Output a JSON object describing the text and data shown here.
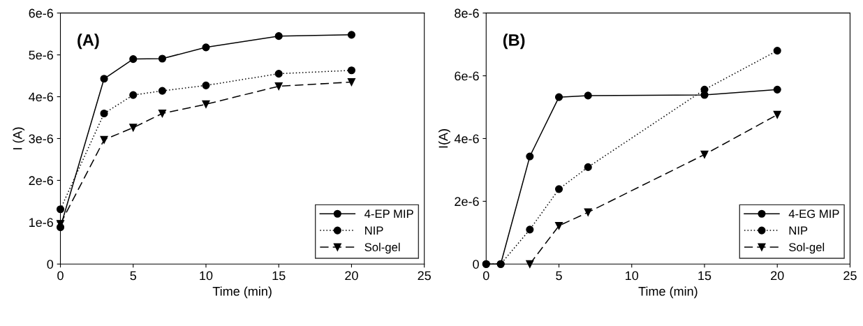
{
  "chart_data": [
    {
      "type": "line",
      "xlabel": "Time (min)",
      "ylabel": "I (A)",
      "annotations": [
        "(A)"
      ],
      "legend": "bottom right",
      "grid": false,
      "xlim": [
        0,
        25
      ],
      "xticks": [
        0,
        5,
        10,
        15,
        20,
        25
      ],
      "ylim": [
        0,
        6e-06
      ],
      "yticks": [
        0,
        {
          "value": 1e-06,
          "label": "1e-6"
        },
        {
          "value": 2e-06,
          "label": "2e-6"
        },
        {
          "value": 3e-06,
          "label": "3e-6"
        },
        {
          "value": 4e-06,
          "label": "4e-6"
        },
        {
          "value": 5e-06,
          "label": "5e-6"
        },
        {
          "value": 6e-06,
          "label": "6e-6"
        }
      ],
      "series": [
        {
          "name": "4-EP MIP",
          "color": "#000000",
          "marker": "circle",
          "line_style": "solid",
          "x": [
            0,
            3,
            5,
            7,
            10,
            15,
            20
          ],
          "values": [
            8.8e-07,
            4.43e-06,
            4.9e-06,
            4.91e-06,
            5.18e-06,
            5.45e-06,
            5.48e-06
          ]
        },
        {
          "name": "NIP",
          "color": "#000000",
          "marker": "circle",
          "line_style": "dotted",
          "x": [
            0,
            3,
            5,
            7,
            10,
            15,
            20
          ],
          "values": [
            1.31e-06,
            3.6e-06,
            4.04e-06,
            4.14e-06,
            4.27e-06,
            4.55e-06,
            4.63e-06
          ]
        },
        {
          "name": "Sol-gel",
          "color": "#000000",
          "marker": "triangle",
          "line_style": "dashed",
          "x": [
            0,
            3,
            5,
            7,
            10,
            15,
            20
          ],
          "values": [
            9.6e-07,
            2.97e-06,
            3.26e-06,
            3.6e-06,
            3.82e-06,
            4.25e-06,
            4.35e-06
          ]
        }
      ]
    },
    {
      "type": "line",
      "xlabel": "Time (min)",
      "ylabel": "I(A)",
      "annotations": [
        "(B)"
      ],
      "legend": "bottom right",
      "grid": false,
      "xlim": [
        0,
        25
      ],
      "xticks": [
        0,
        5,
        10,
        15,
        20,
        25
      ],
      "ylim": [
        0,
        8e-06
      ],
      "yticks": [
        0,
        {
          "value": 2e-06,
          "label": "2e-6"
        },
        {
          "value": 4e-06,
          "label": "4e-6"
        },
        {
          "value": 6e-06,
          "label": "6e-6"
        },
        {
          "value": 8e-06,
          "label": "8e-6"
        }
      ],
      "series": [
        {
          "name": "4-EG MIP",
          "color": "#000000",
          "marker": "circle",
          "line_style": "solid",
          "x": [
            0,
            1,
            3,
            5,
            7,
            15,
            20
          ],
          "values": [
            0,
            0,
            3.43e-06,
            5.32e-06,
            5.37e-06,
            5.39e-06,
            5.56e-06
          ]
        },
        {
          "name": "NIP",
          "color": "#000000",
          "marker": "circle",
          "line_style": "dotted",
          "x": [
            0,
            1,
            3,
            5,
            7,
            15,
            20
          ],
          "values": [
            0,
            0,
            1.1e-06,
            2.39e-06,
            3.09e-06,
            5.56e-06,
            6.8e-06
          ]
        },
        {
          "name": "Sol-gel",
          "color": "#000000",
          "marker": "triangle",
          "line_style": "dashed",
          "x": [
            3,
            5,
            7,
            15,
            20
          ],
          "values": [
            0,
            1.22e-06,
            1.65e-06,
            3.49e-06,
            4.76e-06
          ]
        }
      ]
    }
  ]
}
